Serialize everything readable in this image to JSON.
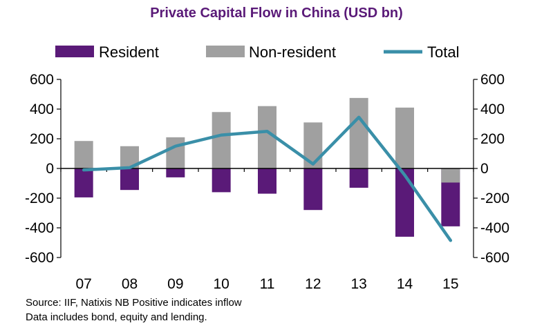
{
  "chart_data": {
    "type": "bar",
    "title": "Private Capital Flow in China (USD bn)",
    "categories": [
      "07",
      "08",
      "09",
      "10",
      "11",
      "12",
      "13",
      "14",
      "15"
    ],
    "series": [
      {
        "name": "Resident",
        "kind": "bar",
        "color": "#5a1a78",
        "values": [
          -195,
          -145,
          -60,
          -160,
          -170,
          -280,
          -130,
          -460,
          -390
        ]
      },
      {
        "name": "Non-resident",
        "kind": "bar",
        "color": "#a0a0a0",
        "values": [
          185,
          150,
          210,
          380,
          420,
          310,
          475,
          410,
          -95
        ]
      },
      {
        "name": "Total",
        "kind": "line",
        "color": "#3a8fa8",
        "values": [
          -10,
          5,
          150,
          225,
          250,
          30,
          345,
          -45,
          -485
        ]
      }
    ],
    "ylim": [
      -600,
      600
    ],
    "yticks": [
      "600",
      "400",
      "200",
      "0",
      "-200",
      "-400",
      "-600"
    ],
    "ytick_values": [
      600,
      400,
      200,
      0,
      -200,
      -400,
      -600
    ],
    "legend_position": "top",
    "grid": false,
    "title_color": "#5a1a78"
  },
  "notes": [
    "Source: IIF, Natixis  NB Positive indicates inflow",
    "Data includes bond, equity and lending."
  ]
}
